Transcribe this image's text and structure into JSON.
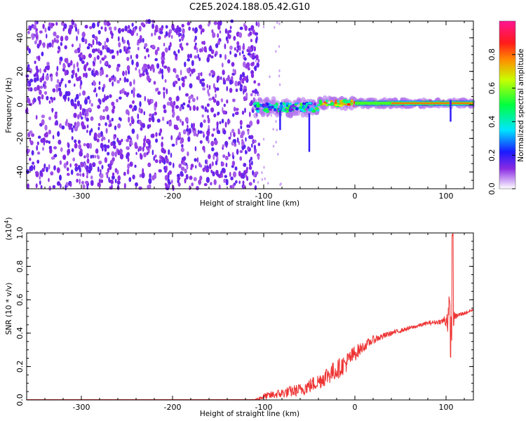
{
  "title": "C2E5.2024.188.05.42.G10",
  "chart_data": [
    {
      "type": "heatmap",
      "xlabel": "Height of straight line (km)",
      "ylabel": "Frequency (Hz)",
      "xlim": [
        -360,
        130
      ],
      "ylim": [
        -50,
        50
      ],
      "x_ticks": [
        -300,
        -200,
        -100,
        0,
        100
      ],
      "y_ticks": [
        -40,
        -20,
        0,
        20,
        40
      ],
      "colorbar": {
        "label": "Normalized spectral amplitude",
        "range": [
          0.0,
          1.0
        ],
        "ticks": [
          0.0,
          0.2,
          0.4,
          0.6,
          0.8
        ],
        "colormap": "rainbow (purple-blue-cyan-green-yellow-red-magenta)"
      },
      "regions": [
        {
          "x_range": [
            -360,
            -105
          ],
          "freq_range": [
            -50,
            50
          ],
          "amplitude_range": [
            0.0,
            0.1
          ],
          "description_level": "noise"
        },
        {
          "x_range": [
            -110,
            -40
          ],
          "freq_center": -1.5,
          "freq_halfwidth": 5,
          "amplitude_range": [
            0.1,
            0.55
          ]
        },
        {
          "x_range": [
            -40,
            0
          ],
          "freq_center": 1,
          "freq_halfwidth": 3,
          "amplitude_range": [
            0.4,
            0.85
          ]
        },
        {
          "x_range": [
            0,
            130
          ],
          "freq_center": 1,
          "freq_halfwidth": 2,
          "amplitude_range": [
            0.5,
            1.0
          ]
        }
      ],
      "features": [
        {
          "x": 105,
          "freq_min": -10,
          "freq_max": 3
        },
        {
          "x": -82,
          "freq_min": -15,
          "freq_max": -3
        },
        {
          "x": -50,
          "freq_min": -28,
          "freq_max": -5
        }
      ]
    },
    {
      "type": "line",
      "xlabel": "Height of straight line (km)",
      "ylabel": "SNR (10 * v/v)",
      "y_multiplier": "(x10^4)",
      "xlim": [
        -360,
        130
      ],
      "ylim": [
        0.0,
        1.0
      ],
      "x_ticks": [
        -300,
        -200,
        -100,
        0,
        100
      ],
      "y_ticks": [
        0.0,
        0.2,
        0.4,
        0.6,
        0.8,
        1.0
      ],
      "series": [
        {
          "color": "#ee3333",
          "x": [
            -360,
            -110,
            -100,
            -80,
            -60,
            -40,
            -30,
            -20,
            -10,
            0,
            10,
            20,
            40,
            60,
            80,
            95,
            100,
            104,
            106,
            107,
            108,
            110,
            120,
            130
          ],
          "y": [
            0.0,
            0.0,
            0.02,
            0.04,
            0.06,
            0.11,
            0.15,
            0.18,
            0.22,
            0.28,
            0.32,
            0.36,
            0.4,
            0.43,
            0.46,
            0.47,
            0.48,
            0.5,
            0.3,
            1.0,
            0.48,
            0.5,
            0.52,
            0.54
          ],
          "noise": [
            0,
            0.003,
            0.02,
            0.03,
            0.04,
            0.05,
            0.06,
            0.06,
            0.06,
            0.05,
            0.03,
            0.025,
            0.015,
            0.012,
            0.012,
            0.015,
            0.05,
            0.15,
            0.2,
            0.2,
            0.05,
            0.02,
            0.012,
            0.01
          ]
        }
      ]
    }
  ]
}
